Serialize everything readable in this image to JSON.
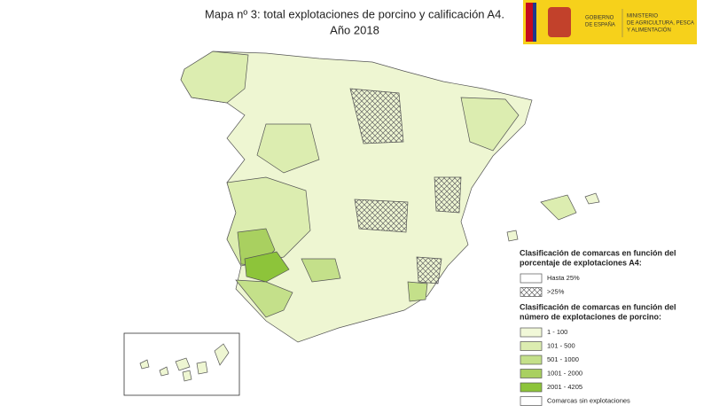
{
  "title": [
    "Mapa nº 3: total explotaciones de porcino y calificación A4.",
    "Año 2018"
  ],
  "logo": {
    "gobierno": [
      "GOBIERNO",
      "DE ESPAÑA"
    ],
    "ministerio": [
      "MINISTERIO",
      "DE AGRICULTURA, PESCA",
      "Y ALIMENTACIÓN"
    ],
    "color": "#f6d11b"
  },
  "legend": [
    {
      "heading": [
        "Clasificación de comarcas en función del",
        "porcentaje de explotaciones A4:"
      ],
      "items": [
        {
          "label": "Hasta 25%",
          "color": "#ffffff",
          "hatched": false
        },
        {
          "label": ">25%",
          "color": "#ffffff",
          "hatched": true
        }
      ]
    },
    {
      "heading": [
        "Clasificación de comarcas en función del",
        "número de explotaciones de porcino:"
      ],
      "items": [
        {
          "label": "1 - 100",
          "color": "#f1f8d8",
          "hatched": false
        },
        {
          "label": "101 - 500",
          "color": "#dcedb0",
          "hatched": false
        },
        {
          "label": "501 - 1000",
          "color": "#c4e08a",
          "hatched": false
        },
        {
          "label": "1001 - 2000",
          "color": "#a9d060",
          "hatched": false
        },
        {
          "label": "2001 - 4205",
          "color": "#8dc43a",
          "hatched": false
        },
        {
          "label": "Comarcas sin explotaciones",
          "color": "#ffffff",
          "hatched": false
        }
      ]
    }
  ]
}
